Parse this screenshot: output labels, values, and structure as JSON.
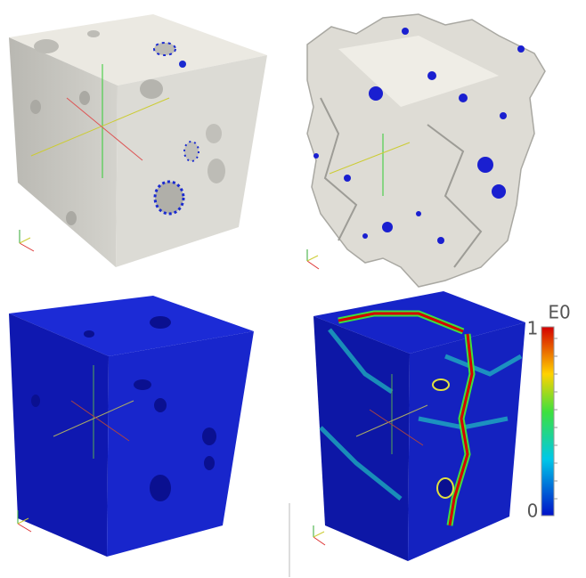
{
  "colorbar": {
    "title": "E0",
    "max": 1,
    "min": 0
  }
}
